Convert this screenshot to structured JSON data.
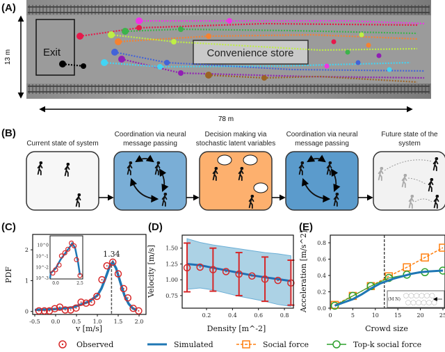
{
  "panel_a": {
    "label": "(A)",
    "exit_label": "Exit",
    "store_label": "Convenience store",
    "height_label": "13 m",
    "width_label": "78 m",
    "trajectory_colors": [
      "#e6194b",
      "#3cb44b",
      "#4363d8",
      "#f58231",
      "#911eb4",
      "#42d4f4",
      "#f032e6",
      "#bfef45",
      "#000000",
      "#9a6324"
    ]
  },
  "panel_b": {
    "label": "(B)",
    "stages": [
      {
        "title_1": "",
        "title_2": "Current state of system",
        "color": "#f7f7f7"
      },
      {
        "title_1": "Coordination via neural",
        "title_2": "message passing",
        "color": "#7aaed6"
      },
      {
        "title_1": "Decision making via",
        "title_2": "stochastic latent variables",
        "color": "#fdb06e"
      },
      {
        "title_1": "Coordination via neural",
        "title_2": "message passing",
        "color": "#5b9bcc"
      },
      {
        "title_1": "Future state of the",
        "title_2": "system",
        "color": "#f2f2f2"
      }
    ]
  },
  "chart_data": [
    {
      "panel": "(C)",
      "type": "line",
      "xlabel": "v [m/s]",
      "ylabel": "PDF",
      "xlim": [
        -0.6,
        2.1
      ],
      "ylim": [
        -0.1,
        2.5
      ],
      "xticks": [
        "-0.5",
        "0.0",
        "0.5",
        "1.0",
        "1.5",
        "2.0"
      ],
      "xtick_values": [
        -0.5,
        0.0,
        0.5,
        1.0,
        1.5,
        2.0
      ],
      "yticks": [
        "0",
        "1",
        "2"
      ],
      "ytick_values": [
        0,
        1,
        2
      ],
      "annotation": "1.34",
      "annotation_x": 1.34,
      "observed": {
        "x": [
          -0.4,
          -0.27,
          -0.15,
          -0.02,
          0.1,
          0.23,
          0.36,
          0.49,
          0.61,
          0.73,
          0.86,
          0.99,
          1.11,
          1.23,
          1.37,
          1.5,
          1.63,
          1.73,
          1.86,
          1.99
        ],
        "y": [
          0.02,
          0.02,
          0.02,
          0.09,
          0.14,
          0.05,
          0.05,
          0.11,
          0.3,
          0.27,
          0.3,
          0.49,
          1.03,
          1.48,
          1.6,
          1.22,
          0.74,
          0.44,
          0.1,
          0.02
        ]
      },
      "simulated": {
        "x": [
          -0.5,
          -0.2,
          0.0,
          0.2,
          0.4,
          0.6,
          0.8,
          1.0,
          1.1,
          1.2,
          1.3,
          1.37,
          1.45,
          1.55,
          1.65,
          1.75,
          1.85,
          1.95
        ],
        "y": [
          0.05,
          0.06,
          0.08,
          0.1,
          0.13,
          0.22,
          0.32,
          0.52,
          0.75,
          1.1,
          1.48,
          1.6,
          1.4,
          0.95,
          0.52,
          0.25,
          0.1,
          0.04
        ]
      },
      "inset": {
        "xticks": [
          "0.0",
          "2.5"
        ],
        "xtick_values": [
          0.0,
          2.5
        ],
        "yticks": [
          "10^0",
          "10^-1",
          "10^-2",
          "10^-3"
        ],
        "ytick_values": [
          1,
          0.1,
          0.01,
          0.001
        ],
        "yscale": "log",
        "observed": {
          "x": [
            -0.29,
            0.0,
            0.36,
            0.6,
            0.95,
            1.26,
            1.62,
            1.9,
            2.14,
            2.5
          ],
          "y": [
            0.003,
            0.006,
            0.016,
            0.11,
            0.21,
            0.44,
            1.6,
            0.9,
            0.05,
            0.0018
          ]
        },
        "simulated": {
          "x": [
            -1.0,
            -0.5,
            0.0,
            0.5,
            1.0,
            1.4,
            1.7,
            2.0,
            2.3,
            2.5
          ],
          "y": [
            0.001,
            0.003,
            0.008,
            0.05,
            0.2,
            0.6,
            1.5,
            0.6,
            0.03,
            0.002
          ]
        }
      }
    },
    {
      "panel": "(D)",
      "type": "line",
      "xlabel": "Density [m^-2]",
      "ylabel": "Velocity [m/s]",
      "xlim": [
        0.02,
        0.88
      ],
      "ylim": [
        0.55,
        1.71
      ],
      "xticks": [
        "0.2",
        "0.4",
        "0.6",
        "0.8"
      ],
      "xtick_values": [
        0.2,
        0.4,
        0.6,
        0.8
      ],
      "yticks": [
        "1.50",
        "1.25",
        "1.00",
        "0.75"
      ],
      "ytick_values": [
        1.5,
        1.25,
        1.0,
        0.75
      ],
      "observed": {
        "x": [
          0.05,
          0.15,
          0.25,
          0.35,
          0.45,
          0.55,
          0.65,
          0.75,
          0.85
        ],
        "y": [
          1.19,
          1.2,
          1.16,
          1.13,
          1.09,
          1.06,
          1.01,
          0.99,
          0.95
        ]
      },
      "error_bars": {
        "x": [
          0.05,
          0.25,
          0.45,
          0.65,
          0.85
        ],
        "lower": [
          0.81,
          0.82,
          0.75,
          0.66,
          0.6
        ],
        "upper": [
          1.58,
          1.5,
          1.43,
          1.36,
          1.31
        ]
      },
      "simulated": {
        "x": [
          0.05,
          0.15,
          0.25,
          0.35,
          0.45,
          0.55,
          0.65,
          0.75,
          0.85
        ],
        "y": [
          1.25,
          1.23,
          1.19,
          1.15,
          1.11,
          1.07,
          1.04,
          1.01,
          0.98
        ]
      },
      "simulated_band": {
        "x": [
          0.05,
          0.15,
          0.25,
          0.35,
          0.45,
          0.55,
          0.65,
          0.75,
          0.85
        ],
        "lower": [
          0.85,
          0.87,
          0.84,
          0.79,
          0.74,
          0.7,
          0.66,
          0.61,
          0.58
        ],
        "upper": [
          1.65,
          1.59,
          1.55,
          1.52,
          1.49,
          1.46,
          1.43,
          1.41,
          1.38
        ]
      }
    },
    {
      "panel": "(E)",
      "type": "line",
      "xlabel": "Crowd size",
      "ylabel": "Acceleration [m/s^2]",
      "xlim": [
        0,
        25
      ],
      "ylim": [
        0,
        0.9
      ],
      "xticks": [
        "0",
        "5",
        "10",
        "15",
        "20",
        "25"
      ],
      "xtick_values": [
        0,
        5,
        10,
        15,
        20,
        25
      ],
      "yticks": [
        "0.0",
        "0.2",
        "0.4",
        "0.6",
        "0.8"
      ],
      "ytick_values": [
        0,
        0.2,
        0.4,
        0.6,
        0.8
      ],
      "vline_x": 12,
      "inset_label": "(M N)",
      "series": [
        {
          "name": "Simulated",
          "x": [
            1,
            3,
            5,
            7,
            9,
            11,
            12,
            14,
            16,
            18,
            20,
            22,
            25
          ],
          "y": [
            0.03,
            0.07,
            0.11,
            0.17,
            0.24,
            0.3,
            0.32,
            0.36,
            0.39,
            0.42,
            0.44,
            0.45,
            0.46
          ]
        },
        {
          "name": "Social force",
          "x": [
            1,
            5,
            9,
            13,
            17,
            21,
            25
          ],
          "y": [
            0.04,
            0.15,
            0.27,
            0.39,
            0.5,
            0.62,
            0.74
          ]
        },
        {
          "name": "Top-k social force",
          "x": [
            1,
            5,
            9,
            13,
            17,
            21,
            25
          ],
          "y": [
            0.03,
            0.15,
            0.27,
            0.37,
            0.41,
            0.44,
            0.46
          ]
        }
      ]
    }
  ],
  "legend": {
    "observed": "Observed",
    "simulated": "Simulated",
    "social_force": "Social force",
    "topk": "Top-k social force"
  },
  "colors": {
    "observed": "#d62728",
    "simulated": "#1f77b4",
    "social_force": "#ff7f0e",
    "topk": "#2ca02c"
  }
}
